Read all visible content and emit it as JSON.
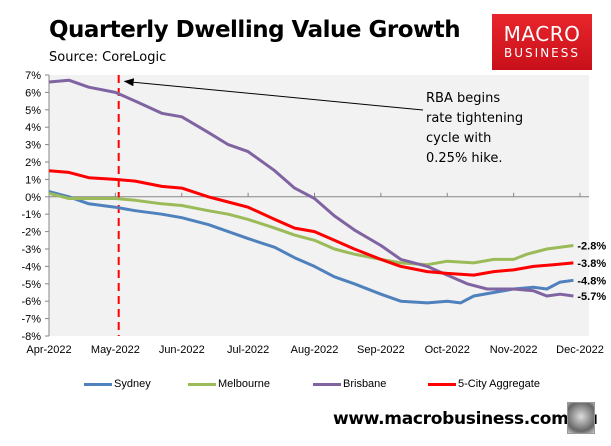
{
  "header": {
    "title": "Quarterly Dwelling Value Growth",
    "subtitle": "Source: CoreLogic"
  },
  "logo": {
    "line1": "MACRO",
    "line2": "BUSINESS",
    "color": "#e11b22"
  },
  "footer": {
    "url": "www.macrobusiness.com.au",
    "icon": "wolf-icon"
  },
  "chart_data": {
    "type": "line",
    "title": "Quarterly Dwelling Value Growth",
    "subtitle": "Source: CoreLogic",
    "xlabel": "",
    "ylabel": "",
    "x": [
      "Apr-2022",
      "May-2022",
      "Jun-2022",
      "Jul-2022",
      "Aug-2022",
      "Sep-2022",
      "Oct-2022",
      "Nov-2022",
      "Dec-2022"
    ],
    "x_range": [
      0,
      8
    ],
    "ylim": [
      -8,
      7
    ],
    "yticks": [
      7,
      6,
      5,
      4,
      3,
      2,
      1,
      0,
      -1,
      -2,
      -3,
      -4,
      -5,
      -6,
      -7,
      -8
    ],
    "ytick_labels": [
      "7%",
      "6%",
      "5%",
      "4%",
      "3%",
      "2%",
      "1%",
      "0%",
      "-1%",
      "-2%",
      "-3%",
      "-4%",
      "-5%",
      "-6%",
      "-7%",
      "-8%"
    ],
    "grid": false,
    "legend_position": "bottom",
    "series": [
      {
        "name": "Sydney",
        "color": "#4f81bd",
        "points": [
          [
            0,
            0.3
          ],
          [
            0.3,
            0.0
          ],
          [
            0.6,
            -0.4
          ],
          [
            1.0,
            -0.6
          ],
          [
            1.3,
            -0.8
          ],
          [
            1.7,
            -1.0
          ],
          [
            2.0,
            -1.2
          ],
          [
            2.4,
            -1.6
          ],
          [
            2.7,
            -2.0
          ],
          [
            3.0,
            -2.4
          ],
          [
            3.4,
            -2.9
          ],
          [
            3.7,
            -3.5
          ],
          [
            4.0,
            -4.0
          ],
          [
            4.3,
            -4.6
          ],
          [
            4.6,
            -5.0
          ],
          [
            5.0,
            -5.6
          ],
          [
            5.3,
            -6.0
          ],
          [
            5.7,
            -6.1
          ],
          [
            6.0,
            -6.0
          ],
          [
            6.2,
            -6.1
          ],
          [
            6.4,
            -5.7
          ],
          [
            6.7,
            -5.5
          ],
          [
            7.0,
            -5.3
          ],
          [
            7.3,
            -5.2
          ],
          [
            7.5,
            -5.3
          ],
          [
            7.7,
            -4.9
          ],
          [
            7.9,
            -4.8
          ]
        ],
        "end_label": "-4.8%"
      },
      {
        "name": "Melbourne",
        "color": "#9bbb59",
        "points": [
          [
            0,
            0.2
          ],
          [
            0.3,
            -0.1
          ],
          [
            0.6,
            -0.1
          ],
          [
            1.0,
            -0.1
          ],
          [
            1.3,
            -0.2
          ],
          [
            1.7,
            -0.4
          ],
          [
            2.0,
            -0.5
          ],
          [
            2.4,
            -0.8
          ],
          [
            2.7,
            -1.0
          ],
          [
            3.0,
            -1.3
          ],
          [
            3.4,
            -1.8
          ],
          [
            3.7,
            -2.2
          ],
          [
            4.0,
            -2.5
          ],
          [
            4.3,
            -3.0
          ],
          [
            4.6,
            -3.3
          ],
          [
            5.0,
            -3.6
          ],
          [
            5.3,
            -3.8
          ],
          [
            5.7,
            -3.9
          ],
          [
            6.0,
            -3.7
          ],
          [
            6.4,
            -3.8
          ],
          [
            6.7,
            -3.6
          ],
          [
            7.0,
            -3.6
          ],
          [
            7.2,
            -3.3
          ],
          [
            7.5,
            -3.0
          ],
          [
            7.7,
            -2.9
          ],
          [
            7.9,
            -2.8
          ]
        ],
        "end_label": "-2.8%"
      },
      {
        "name": "Brisbane",
        "color": "#8064a2",
        "points": [
          [
            0,
            6.6
          ],
          [
            0.3,
            6.7
          ],
          [
            0.6,
            6.3
          ],
          [
            1.0,
            6.0
          ],
          [
            1.3,
            5.5
          ],
          [
            1.7,
            4.8
          ],
          [
            2.0,
            4.6
          ],
          [
            2.4,
            3.7
          ],
          [
            2.7,
            3.0
          ],
          [
            3.0,
            2.6
          ],
          [
            3.4,
            1.5
          ],
          [
            3.7,
            0.5
          ],
          [
            4.0,
            -0.1
          ],
          [
            4.3,
            -1.1
          ],
          [
            4.6,
            -1.9
          ],
          [
            5.0,
            -2.8
          ],
          [
            5.3,
            -3.6
          ],
          [
            5.7,
            -4.0
          ],
          [
            6.0,
            -4.5
          ],
          [
            6.3,
            -5.0
          ],
          [
            6.6,
            -5.3
          ],
          [
            7.0,
            -5.3
          ],
          [
            7.3,
            -5.4
          ],
          [
            7.5,
            -5.7
          ],
          [
            7.7,
            -5.6
          ],
          [
            7.9,
            -5.7
          ]
        ],
        "end_label": "-5.7%"
      },
      {
        "name": "5-City Aggregate",
        "color": "#ff0000",
        "points": [
          [
            0,
            1.5
          ],
          [
            0.3,
            1.4
          ],
          [
            0.6,
            1.1
          ],
          [
            1.0,
            1.0
          ],
          [
            1.3,
            0.9
          ],
          [
            1.7,
            0.6
          ],
          [
            2.0,
            0.5
          ],
          [
            2.4,
            0.0
          ],
          [
            2.7,
            -0.3
          ],
          [
            3.0,
            -0.6
          ],
          [
            3.4,
            -1.3
          ],
          [
            3.7,
            -1.8
          ],
          [
            4.0,
            -2.0
          ],
          [
            4.3,
            -2.5
          ],
          [
            4.6,
            -3.0
          ],
          [
            5.0,
            -3.6
          ],
          [
            5.3,
            -4.0
          ],
          [
            5.7,
            -4.3
          ],
          [
            6.0,
            -4.4
          ],
          [
            6.4,
            -4.5
          ],
          [
            6.7,
            -4.3
          ],
          [
            7.0,
            -4.2
          ],
          [
            7.3,
            -4.0
          ],
          [
            7.6,
            -3.9
          ],
          [
            7.9,
            -3.8
          ]
        ],
        "end_label": "-3.8%"
      }
    ],
    "annotations": [
      {
        "type": "vline",
        "x": 1.05,
        "style": "dashed",
        "color": "#ff0000"
      },
      {
        "type": "arrow_text",
        "text_lines": [
          "RBA begins",
          "rate tightening",
          "cycle with",
          "0.25% hike."
        ],
        "points_to": [
          1.05,
          6.0
        ]
      }
    ]
  },
  "legend": [
    {
      "label": "Sydney",
      "color": "#4f81bd"
    },
    {
      "label": "Melbourne",
      "color": "#9bbb59"
    },
    {
      "label": "Brisbane",
      "color": "#8064a2"
    },
    {
      "label": "5-City Aggregate",
      "color": "#ff0000"
    }
  ]
}
